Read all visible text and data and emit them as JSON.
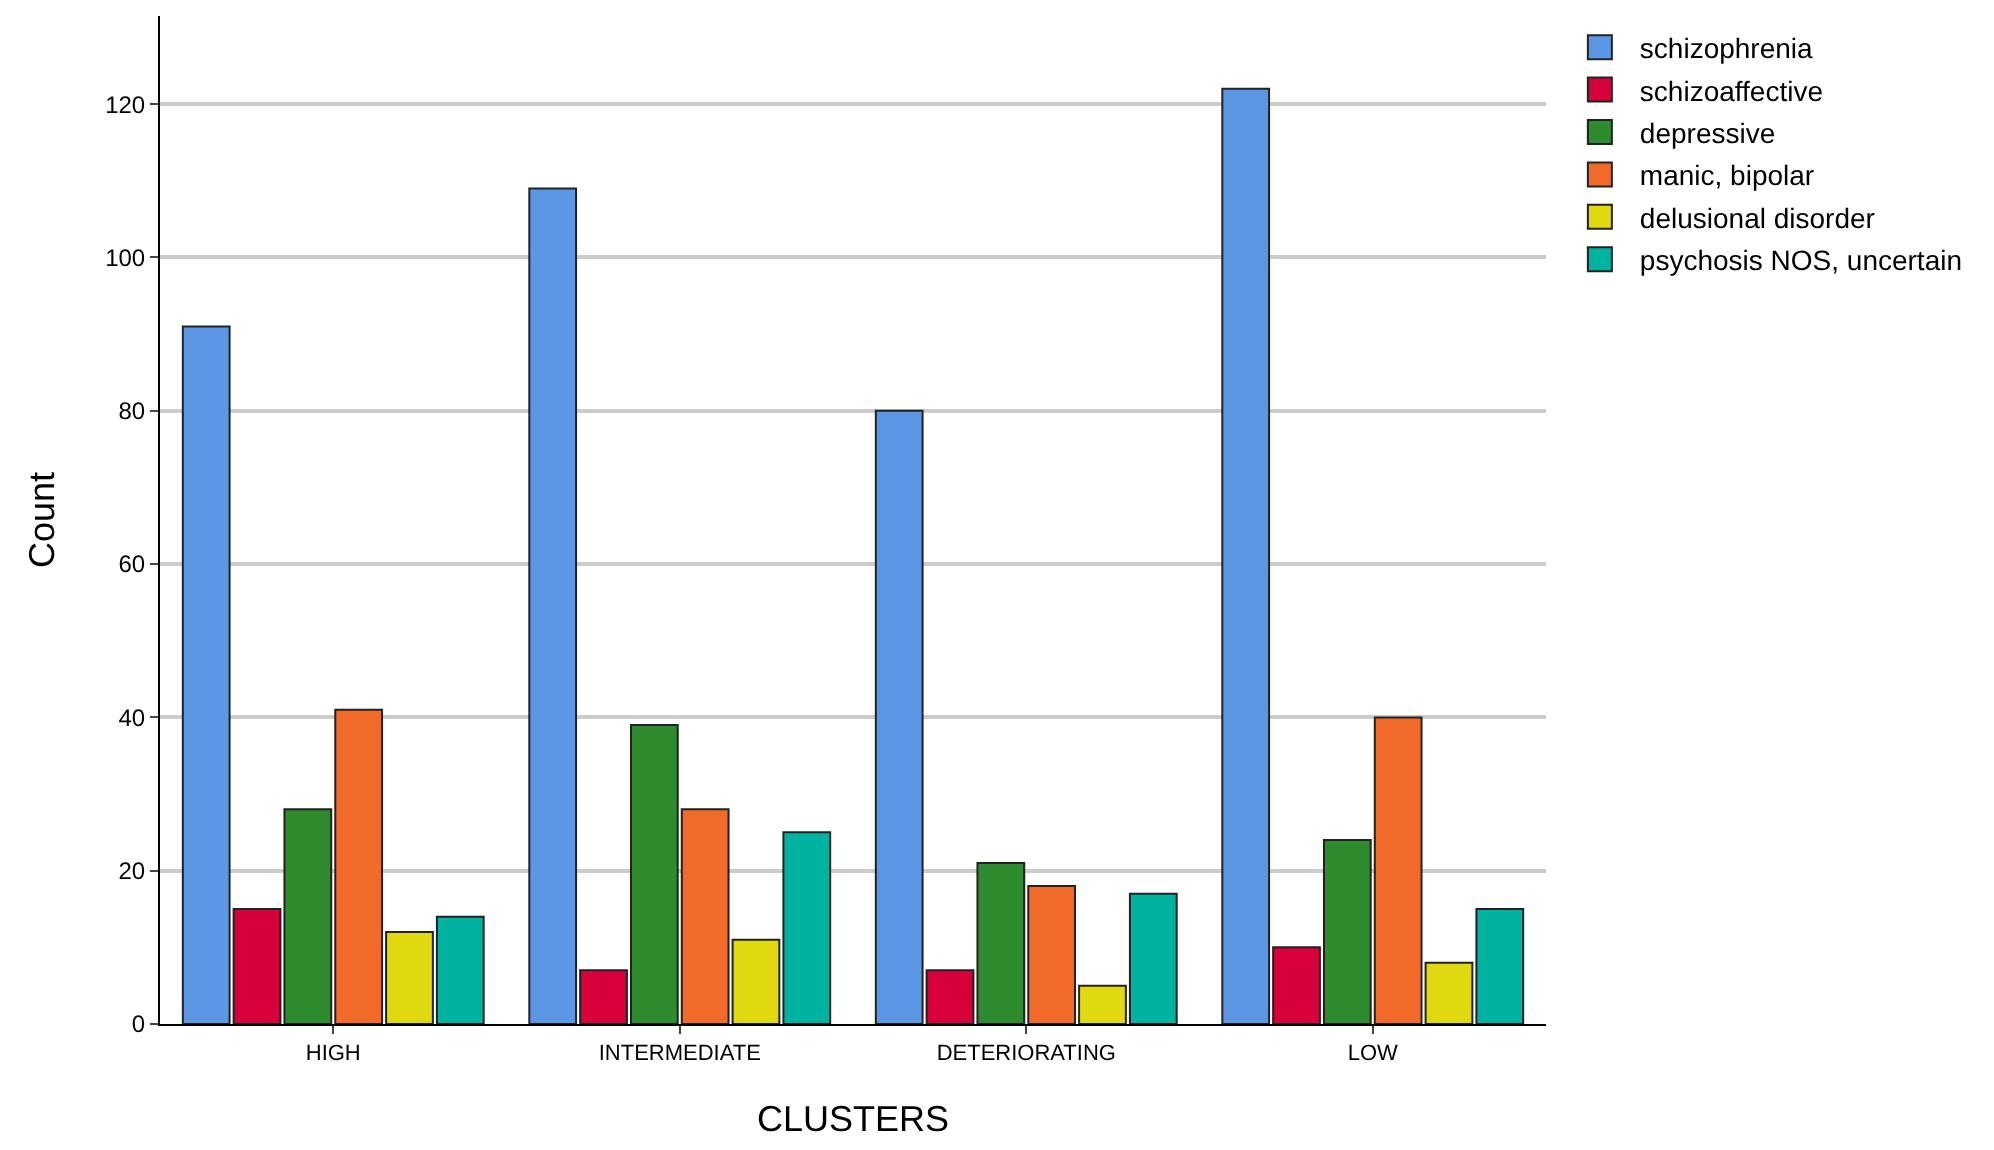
{
  "chart_data": {
    "type": "bar",
    "xlabel": "CLUSTERS",
    "ylabel": "Count",
    "categories": [
      "HIGH",
      "INTERMEDIATE",
      "DETERIORATING",
      "LOW"
    ],
    "series": [
      {
        "name": "schizophrenia",
        "color": "#5b97e5",
        "values": [
          91,
          109,
          80,
          122
        ]
      },
      {
        "name": "schizoaffective",
        "color": "#d6003a",
        "values": [
          15,
          7,
          7,
          10
        ]
      },
      {
        "name": "depressive",
        "color": "#2e8b2e",
        "values": [
          28,
          39,
          21,
          24
        ]
      },
      {
        "name": "manic, bipolar",
        "color": "#f26a2a",
        "values": [
          41,
          28,
          18,
          40
        ]
      },
      {
        "name": "delusional disorder",
        "color": "#e0d90f",
        "values": [
          12,
          11,
          5,
          8
        ]
      },
      {
        "name": "psychosis NOS, uncertain",
        "color": "#00b3a1",
        "values": [
          14,
          25,
          17,
          15
        ]
      }
    ],
    "ylim": [
      0,
      131.5
    ],
    "yticks": [
      0,
      20,
      40,
      60,
      80,
      100,
      120
    ],
    "grid": "y",
    "legend": "top right"
  }
}
